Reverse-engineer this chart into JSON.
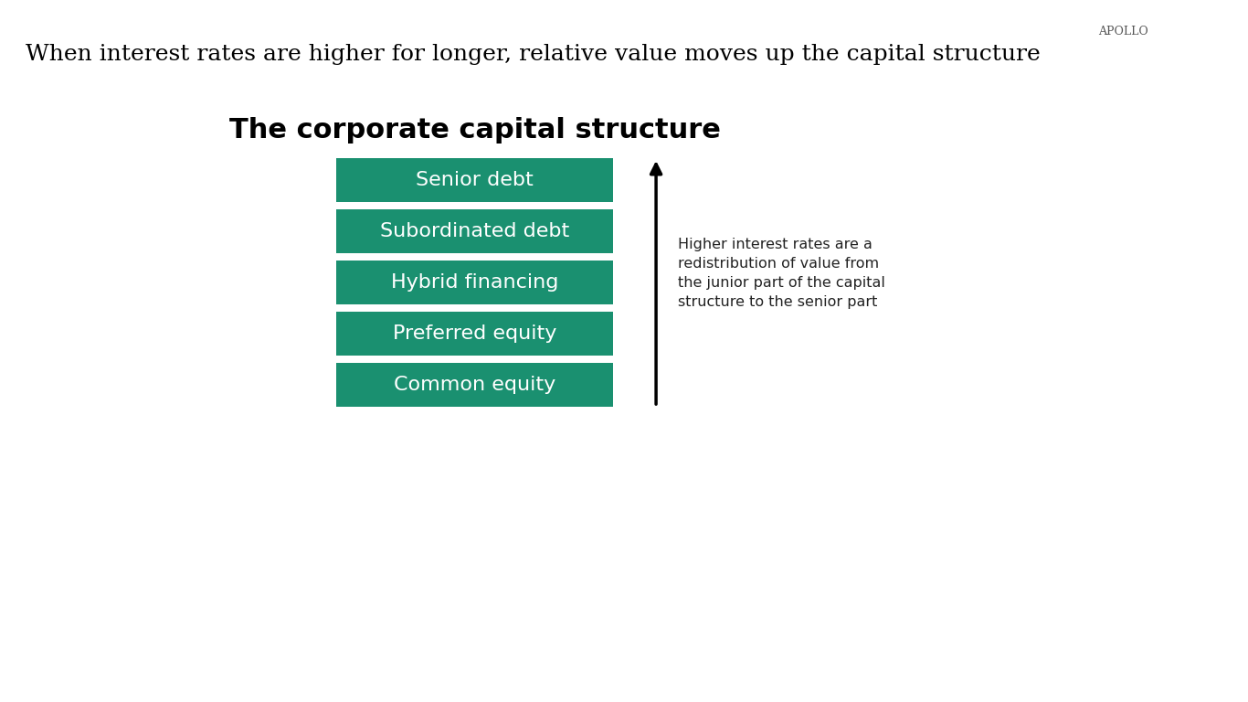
{
  "title": "The corporate capital structure",
  "subtitle": "When interest rates are higher for longer, relative value moves up the capital structure",
  "branding": "APOLLO",
  "boxes": [
    "Senior debt",
    "Subordinated debt",
    "Hybrid financing",
    "Preferred equity",
    "Common equity"
  ],
  "box_color": "#1a9070",
  "box_text_color": "#ffffff",
  "bg_color": "#ffffff",
  "title_color": "#000000",
  "subtitle_color": "#000000",
  "arrow_color": "#000000",
  "annotation_text": "Higher interest rates are a\nredistribution of value from\nthe junior part of the capital\nstructure to the senior part",
  "annotation_color": "#222222"
}
